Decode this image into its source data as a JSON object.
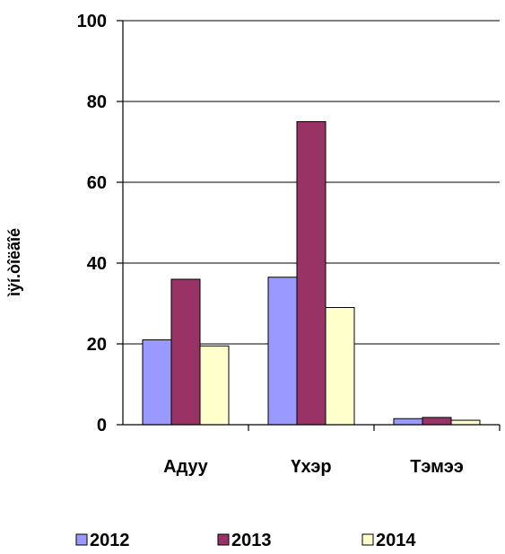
{
  "chart_data": {
    "type": "bar",
    "title": "",
    "xlabel": "",
    "ylabel": "ìÿí.òîëãîé",
    "ylim": [
      0,
      100
    ],
    "yticks": [
      0,
      20,
      40,
      60,
      80,
      100
    ],
    "grid": true,
    "legend_position": "bottom",
    "categories": [
      "Адуу",
      "Үхэр",
      "Тэмээ"
    ],
    "series": [
      {
        "name": "2012",
        "color": "#9999ff",
        "values": [
          21,
          36.5,
          1.5
        ]
      },
      {
        "name": "2013",
        "color": "#993366",
        "values": [
          36,
          75,
          1.8
        ]
      },
      {
        "name": "2014",
        "color": "#ffffcc",
        "values": [
          19.5,
          29,
          1.1
        ]
      }
    ]
  }
}
